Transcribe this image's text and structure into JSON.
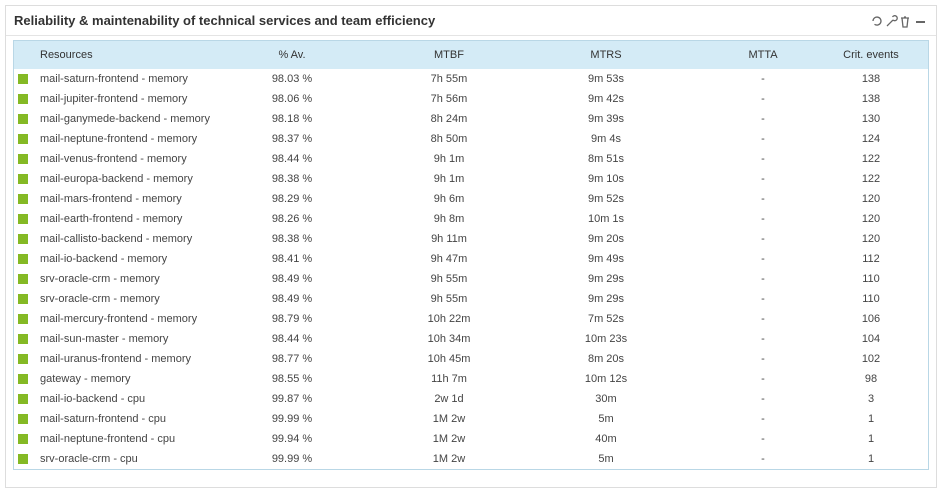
{
  "title": "Reliability & maintenability of technical services and team efficiency",
  "table": {
    "headers": [
      "Resources",
      "% Av.",
      "MTBF",
      "MTRS",
      "MTTA",
      "Crit. events"
    ],
    "rows": [
      [
        "mail-saturn-frontend - memory",
        "98.03 %",
        "7h 55m",
        "9m 53s",
        "-",
        "138"
      ],
      [
        "mail-jupiter-frontend - memory",
        "98.06 %",
        "7h 56m",
        "9m 42s",
        "-",
        "138"
      ],
      [
        "mail-ganymede-backend - memory",
        "98.18 %",
        "8h 24m",
        "9m 39s",
        "-",
        "130"
      ],
      [
        "mail-neptune-frontend - memory",
        "98.37 %",
        "8h 50m",
        "9m 4s",
        "-",
        "124"
      ],
      [
        "mail-venus-frontend - memory",
        "98.44 %",
        "9h 1m",
        "8m 51s",
        "-",
        "122"
      ],
      [
        "mail-europa-backend - memory",
        "98.38 %",
        "9h 1m",
        "9m 10s",
        "-",
        "122"
      ],
      [
        "mail-mars-frontend - memory",
        "98.29 %",
        "9h 6m",
        "9m 52s",
        "-",
        "120"
      ],
      [
        "mail-earth-frontend - memory",
        "98.26 %",
        "9h 8m",
        "10m 1s",
        "-",
        "120"
      ],
      [
        "mail-callisto-backend - memory",
        "98.38 %",
        "9h 11m",
        "9m 20s",
        "-",
        "120"
      ],
      [
        "mail-io-backend - memory",
        "98.41 %",
        "9h 47m",
        "9m 49s",
        "-",
        "112"
      ],
      [
        "srv-oracle-crm - memory",
        "98.49 %",
        "9h 55m",
        "9m 29s",
        "-",
        "110"
      ],
      [
        "srv-oracle-crm - memory",
        "98.49 %",
        "9h 55m",
        "9m 29s",
        "-",
        "110"
      ],
      [
        "mail-mercury-frontend - memory",
        "98.79 %",
        "10h 22m",
        "7m 52s",
        "-",
        "106"
      ],
      [
        "mail-sun-master - memory",
        "98.44 %",
        "10h 34m",
        "10m 23s",
        "-",
        "104"
      ],
      [
        "mail-uranus-frontend - memory",
        "98.77 %",
        "10h 45m",
        "8m 20s",
        "-",
        "102"
      ],
      [
        "gateway - memory",
        "98.55 %",
        "11h 7m",
        "10m 12s",
        "-",
        "98"
      ],
      [
        "mail-io-backend - cpu",
        "99.87 %",
        "2w 1d",
        "30m",
        "-",
        "3"
      ],
      [
        "mail-saturn-frontend - cpu",
        "99.99 %",
        "1M 2w",
        "5m",
        "-",
        "1"
      ],
      [
        "mail-neptune-frontend - cpu",
        "99.94 %",
        "1M 2w",
        "40m",
        "-",
        "1"
      ],
      [
        "srv-oracle-crm - cpu",
        "99.99 %",
        "1M 2w",
        "5m",
        "-",
        "1"
      ]
    ]
  }
}
